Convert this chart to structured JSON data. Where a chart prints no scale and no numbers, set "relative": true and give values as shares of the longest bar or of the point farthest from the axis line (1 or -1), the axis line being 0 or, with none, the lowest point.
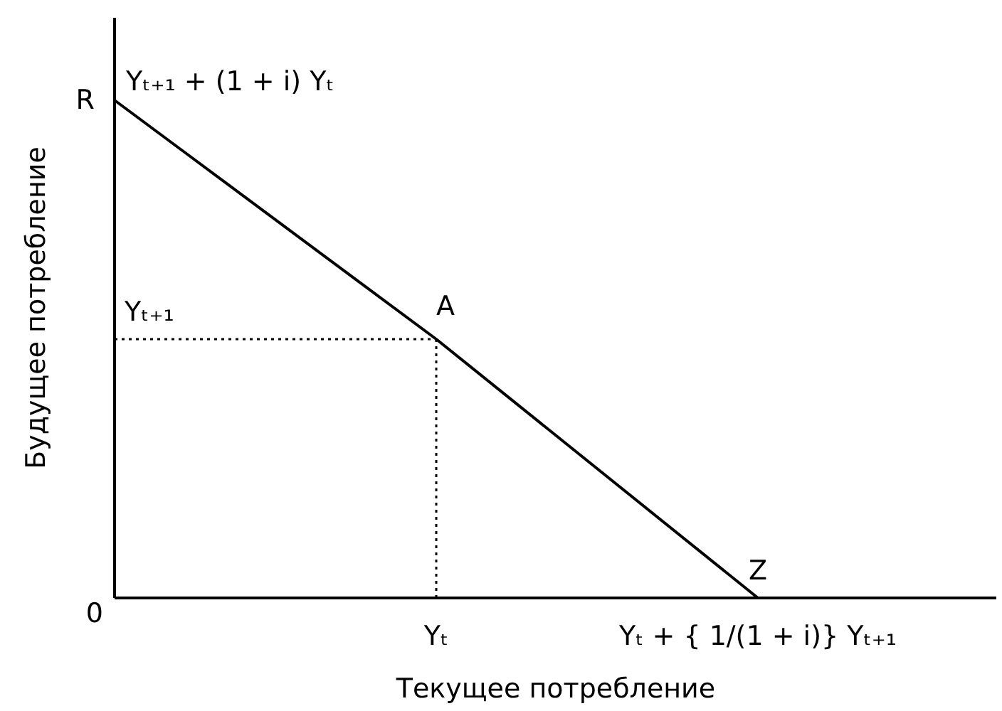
{
  "chart_data": {
    "type": "line",
    "relative": true,
    "xlabel": "Текущее потребление",
    "ylabel": "Будущее потребление",
    "categories": [
      null,
      "Yₜ",
      "Yₜ + { 1/(1 + i)} Yₜ₊₁"
    ],
    "series": [
      {
        "color": "#000000",
        "values": [
          1,
          0.52,
          0
        ]
      },
      {
        "color": "#000000",
        "line_style": "dotted",
        "values": [
          0.52,
          0.52,
          null
        ]
      },
      {
        "color": "#000000",
        "line_style": "dotted",
        "x": [
          "Yₜ",
          "Yₜ"
        ],
        "values": [
          0,
          0.52
        ]
      }
    ],
    "annotations": [
      "R",
      "Yₜ₊₁ + (1 + i) Yₜ",
      {
        "text": "Yₜ₊₁",
        "y": 0.52
      },
      {
        "text": "A",
        "x": "Yₜ",
        "y": 0.52
      },
      {
        "text": "Z",
        "x": "Yₜ + { 1/(1 + i)} Yₜ₊₁",
        "y": 0
      },
      "0"
    ]
  }
}
